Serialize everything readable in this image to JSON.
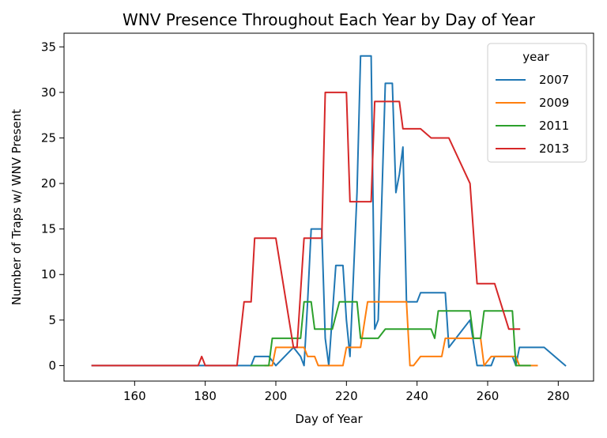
{
  "chart_data": {
    "type": "line",
    "title": "WNV Presence Throughout Each Year by Day of Year",
    "xlabel": "Day of Year",
    "ylabel": "Number of Traps w/ WNV Present",
    "xlim": [
      140,
      290
    ],
    "ylim": [
      -1.7,
      36.5
    ],
    "x_ticks": [
      160,
      180,
      200,
      220,
      240,
      260,
      280
    ],
    "y_ticks": [
      0,
      5,
      10,
      15,
      20,
      25,
      30,
      35
    ],
    "grid": false,
    "legend": {
      "title": "year",
      "position": "top-right"
    },
    "series": [
      {
        "name": "2007",
        "color": "#1f77b4",
        "points": [
          [
            148,
            0
          ],
          [
            178,
            0
          ],
          [
            193,
            0
          ],
          [
            194,
            1
          ],
          [
            198,
            1
          ],
          [
            200,
            0
          ],
          [
            205,
            2
          ],
          [
            207,
            1
          ],
          [
            208,
            0
          ],
          [
            209,
            7
          ],
          [
            210,
            15
          ],
          [
            213,
            15
          ],
          [
            214,
            3
          ],
          [
            215,
            0
          ],
          [
            217,
            11
          ],
          [
            219,
            11
          ],
          [
            220,
            5
          ],
          [
            221,
            1
          ],
          [
            223,
            19
          ],
          [
            224,
            34
          ],
          [
            227,
            34
          ],
          [
            228,
            4
          ],
          [
            229,
            5
          ],
          [
            230,
            18
          ],
          [
            231,
            31
          ],
          [
            233,
            31
          ],
          [
            234,
            19
          ],
          [
            235,
            21
          ],
          [
            236,
            24
          ],
          [
            237,
            7
          ],
          [
            239,
            7
          ],
          [
            240,
            7
          ],
          [
            241,
            8
          ],
          [
            248,
            8
          ],
          [
            249,
            2
          ],
          [
            255,
            5
          ],
          [
            257,
            0
          ],
          [
            261,
            0
          ],
          [
            262,
            1
          ],
          [
            266,
            1
          ],
          [
            267,
            1
          ],
          [
            268,
            0
          ],
          [
            269,
            2
          ],
          [
            276,
            2
          ],
          [
            282,
            0
          ]
        ]
      },
      {
        "name": "2009",
        "color": "#ff7f0e",
        "points": [
          [
            197,
            0
          ],
          [
            198,
            0
          ],
          [
            199,
            0
          ],
          [
            200,
            2
          ],
          [
            204,
            2
          ],
          [
            206,
            2
          ],
          [
            208,
            2
          ],
          [
            209,
            1
          ],
          [
            211,
            1
          ],
          [
            212,
            0
          ],
          [
            214,
            0
          ],
          [
            215,
            0
          ],
          [
            219,
            0
          ],
          [
            220,
            2
          ],
          [
            224,
            2
          ],
          [
            226,
            7
          ],
          [
            237,
            7
          ],
          [
            238,
            0
          ],
          [
            239,
            0
          ],
          [
            241,
            1
          ],
          [
            247,
            1
          ],
          [
            248,
            3
          ],
          [
            258,
            3
          ],
          [
            259,
            0
          ],
          [
            261,
            1
          ],
          [
            266,
            1
          ],
          [
            268,
            1
          ],
          [
            269,
            0
          ],
          [
            274,
            0
          ]
        ]
      },
      {
        "name": "2011",
        "color": "#2ca02c",
        "points": [
          [
            193,
            0
          ],
          [
            197,
            0
          ],
          [
            198,
            0
          ],
          [
            199,
            3
          ],
          [
            204,
            3
          ],
          [
            207,
            3
          ],
          [
            208,
            7
          ],
          [
            210,
            7
          ],
          [
            211,
            4
          ],
          [
            215,
            4
          ],
          [
            216,
            4
          ],
          [
            218,
            7
          ],
          [
            223,
            7
          ],
          [
            224,
            3
          ],
          [
            229,
            3
          ],
          [
            231,
            4
          ],
          [
            244,
            4
          ],
          [
            245,
            3
          ],
          [
            246,
            6
          ],
          [
            255,
            6
          ],
          [
            256,
            3
          ],
          [
            258,
            3
          ],
          [
            259,
            6
          ],
          [
            267,
            6
          ],
          [
            268,
            0
          ],
          [
            272,
            0
          ]
        ]
      },
      {
        "name": "2013",
        "color": "#d62728",
        "points": [
          [
            148,
            0
          ],
          [
            178,
            0
          ],
          [
            179,
            1
          ],
          [
            180,
            0
          ],
          [
            188,
            0
          ],
          [
            189,
            0
          ],
          [
            191,
            7
          ],
          [
            193,
            7
          ],
          [
            194,
            14
          ],
          [
            199,
            14
          ],
          [
            200,
            14
          ],
          [
            205,
            2
          ],
          [
            206,
            2
          ],
          [
            208,
            14
          ],
          [
            211,
            14
          ],
          [
            213,
            14
          ],
          [
            214,
            30
          ],
          [
            220,
            30
          ],
          [
            221,
            18
          ],
          [
            227,
            18
          ],
          [
            228,
            29
          ],
          [
            235,
            29
          ],
          [
            236,
            26
          ],
          [
            241,
            26
          ],
          [
            244,
            25
          ],
          [
            249,
            25
          ],
          [
            255,
            20
          ],
          [
            257,
            9
          ],
          [
            262,
            9
          ],
          [
            266,
            4
          ],
          [
            269,
            4
          ]
        ]
      }
    ]
  }
}
